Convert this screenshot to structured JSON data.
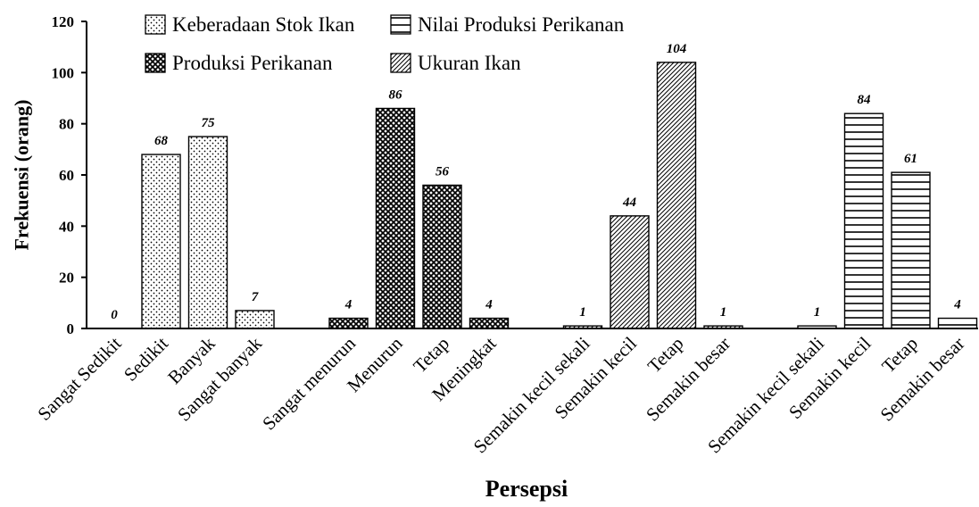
{
  "chart_data": {
    "type": "bar",
    "xlabel": "Persepsi",
    "ylabel": "Frekuensi (orang)",
    "ylim": [
      0,
      120
    ],
    "yticks": [
      0,
      20,
      40,
      60,
      80,
      100,
      120
    ],
    "grid": false,
    "data_labels": true,
    "legend": {
      "position": "top-left",
      "order": [
        0,
        3,
        1,
        2
      ]
    },
    "series": [
      {
        "name": "Keberadaan Stok Ikan",
        "pattern": "dots",
        "categories": [
          "Sangat Sedikit",
          "Sedikit",
          "Banyak",
          "Sangat banyak"
        ],
        "values": [
          0,
          68,
          75,
          7
        ]
      },
      {
        "name": "Produksi Perikanan",
        "pattern": "crosshatch",
        "categories": [
          "Sangat menurun",
          "Menurun",
          "Tetap",
          "Meningkat"
        ],
        "values": [
          4,
          86,
          56,
          4
        ]
      },
      {
        "name": "Ukuran Ikan",
        "pattern": "diagonal-lines",
        "categories": [
          "Semakin kecil sekali",
          "Semakin kecil",
          "Tetap",
          "Semakin besar"
        ],
        "values": [
          1,
          44,
          104,
          1
        ]
      },
      {
        "name": "Nilai Produksi Perikanan",
        "pattern": "horizontal-lines",
        "categories": [
          "Semakin kecil sekali",
          "Semakin kecil",
          "Tetap",
          "Semakin besar"
        ],
        "values": [
          1,
          84,
          61,
          4
        ]
      }
    ],
    "colors": {
      "bar_stroke": "#000000",
      "axis": "#000000"
    }
  }
}
